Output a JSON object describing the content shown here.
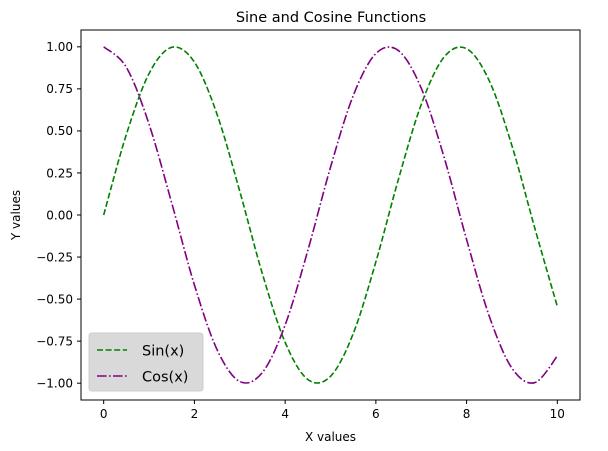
{
  "chart_data": {
    "type": "line",
    "title": "Sine and Cosine Functions",
    "xlabel": "X values",
    "ylabel": "Y values",
    "xlim": [
      -0.5,
      10.5
    ],
    "ylim": [
      -1.1,
      1.1
    ],
    "x_ticks": [
      0,
      2,
      4,
      6,
      8,
      10
    ],
    "x_tick_labels": [
      "0",
      "2",
      "4",
      "6",
      "8",
      "10"
    ],
    "y_ticks": [
      -1.0,
      -0.75,
      -0.5,
      -0.25,
      0.0,
      0.25,
      0.5,
      0.75,
      1.0
    ],
    "y_tick_labels": [
      "−1.00",
      "−0.75",
      "−0.50",
      "−0.25",
      "0.00",
      "0.25",
      "0.50",
      "0.75",
      "1.00"
    ],
    "grid": false,
    "legend_position": "lower-left",
    "x": [
      0,
      0.5,
      1,
      1.5,
      2,
      2.5,
      3,
      3.5,
      4,
      4.5,
      5,
      5.5,
      6,
      6.5,
      7,
      7.5,
      8,
      8.5,
      9,
      9.5,
      10
    ],
    "series": [
      {
        "name": "Sin(x)",
        "color": "#008000",
        "style": "dashed",
        "values": [
          0,
          0.479,
          0.841,
          0.997,
          0.909,
          0.598,
          0.141,
          -0.351,
          -0.757,
          -0.978,
          -0.959,
          -0.706,
          -0.279,
          0.215,
          0.657,
          0.938,
          0.989,
          0.798,
          0.412,
          -0.075,
          -0.544
        ]
      },
      {
        "name": "Cos(x)",
        "color": "#800080",
        "style": "dashdot",
        "values": [
          1,
          0.878,
          0.54,
          0.071,
          -0.416,
          -0.801,
          -0.99,
          -0.936,
          -0.654,
          -0.211,
          0.284,
          0.709,
          0.96,
          0.977,
          0.754,
          0.347,
          -0.146,
          -0.602,
          -0.911,
          -0.997,
          -0.839
        ]
      }
    ]
  }
}
